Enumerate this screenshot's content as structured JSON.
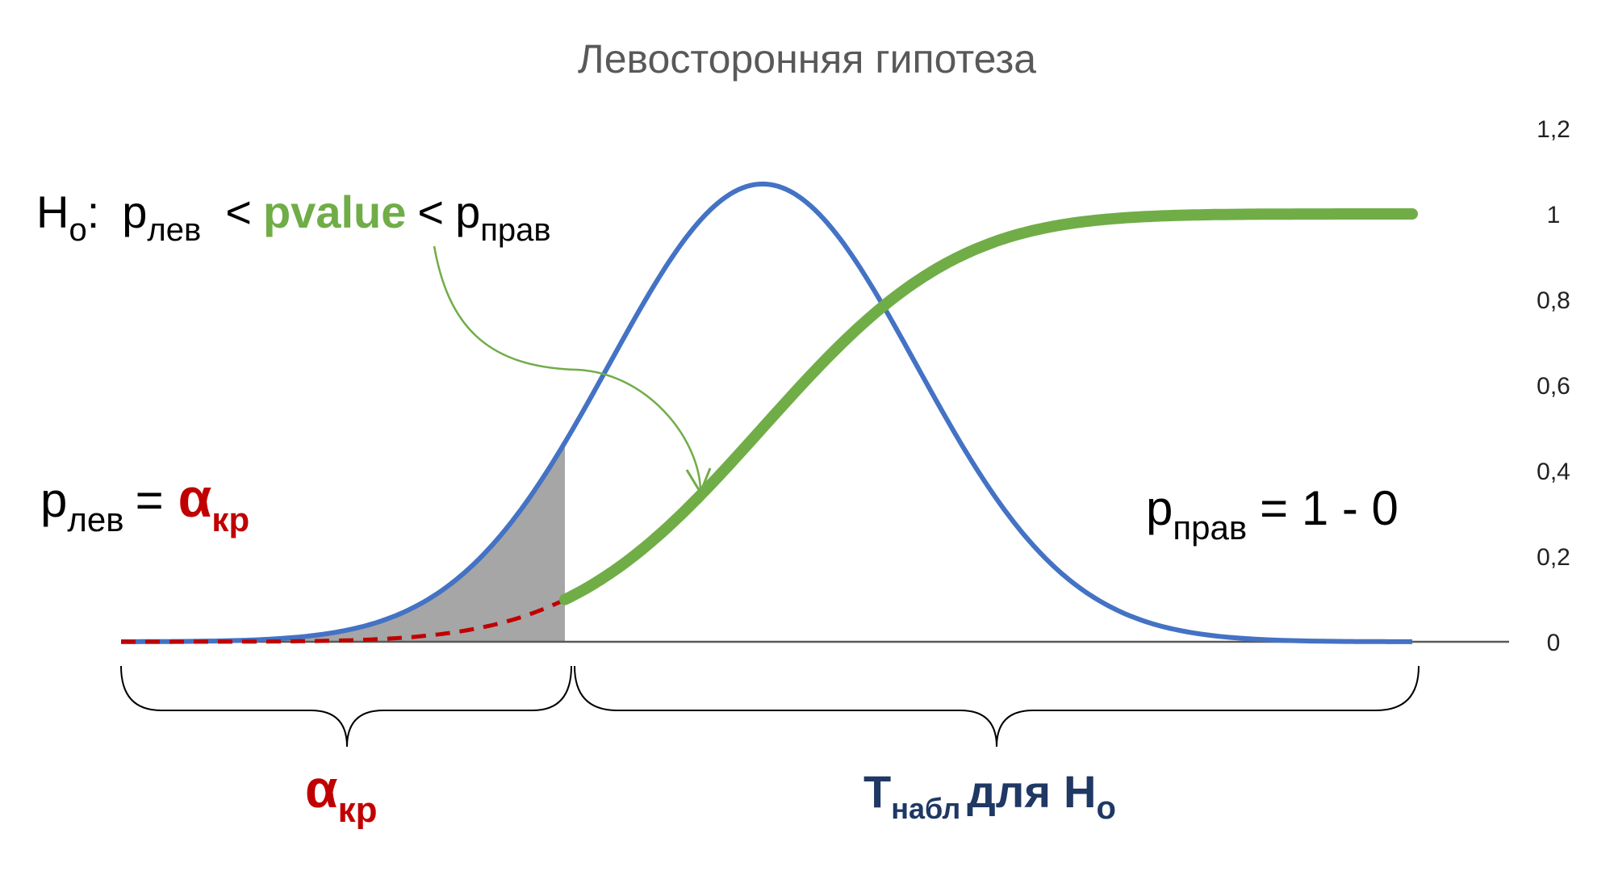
{
  "title": "Левосторонняя гипотеза",
  "y_ticks": [
    "1,2",
    "1",
    "0,8",
    "0,6",
    "0,4",
    "0,2",
    "0"
  ],
  "formula": {
    "h": "H",
    "h_sub": "o",
    "colon": ":",
    "p": "p",
    "lev": "лев",
    "lt1": "<",
    "pvalue": "pvalue",
    "lt2": "<",
    "prav": "прав"
  },
  "left_label": {
    "p": "p",
    "lev": "лев",
    "eq": "=",
    "alpha": "α",
    "kr": "кр"
  },
  "right_label": {
    "p": "p",
    "prav": "прав",
    "rest": "= 1 - 0"
  },
  "brace_left_label": {
    "alpha": "α",
    "kr": "кр"
  },
  "brace_right_label": {
    "t": "T",
    "nabl": "набл",
    "for": "для",
    "h": "H",
    "h_sub": "o"
  },
  "colors": {
    "title": "#595959",
    "density": "#4472c4",
    "cdf": "#70ad47",
    "alpha": "#c00000",
    "shade": "#a6a6a6",
    "axis": "#595959",
    "t_label": "#1f3864",
    "brace": "#000000"
  }
}
